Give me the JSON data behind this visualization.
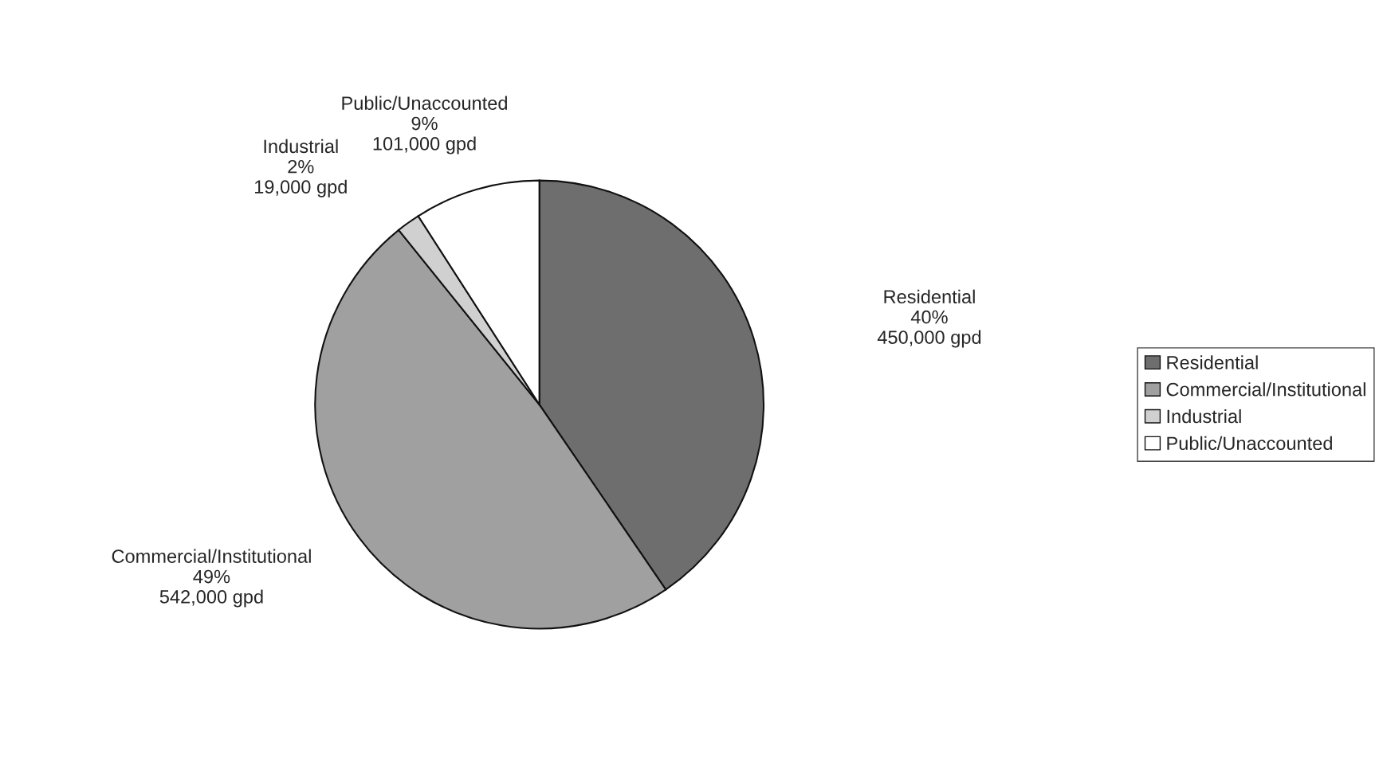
{
  "chart_data": {
    "type": "pie",
    "categories": [
      "Residential",
      "Commercial/Institutional",
      "Industrial",
      "Public/Unaccounted"
    ],
    "values": [
      450000,
      542000,
      19000,
      101000
    ],
    "value_labels": [
      "40%\n450,000 gpd",
      "49%\n542,000 gpd",
      "2%\n19,000 gpd",
      "9%\n101,000 gpd"
    ],
    "colors": [
      "#6e6e6e",
      "#a0a0a0",
      "#d0d0d0",
      "#ffffff"
    ],
    "legend": "right"
  }
}
